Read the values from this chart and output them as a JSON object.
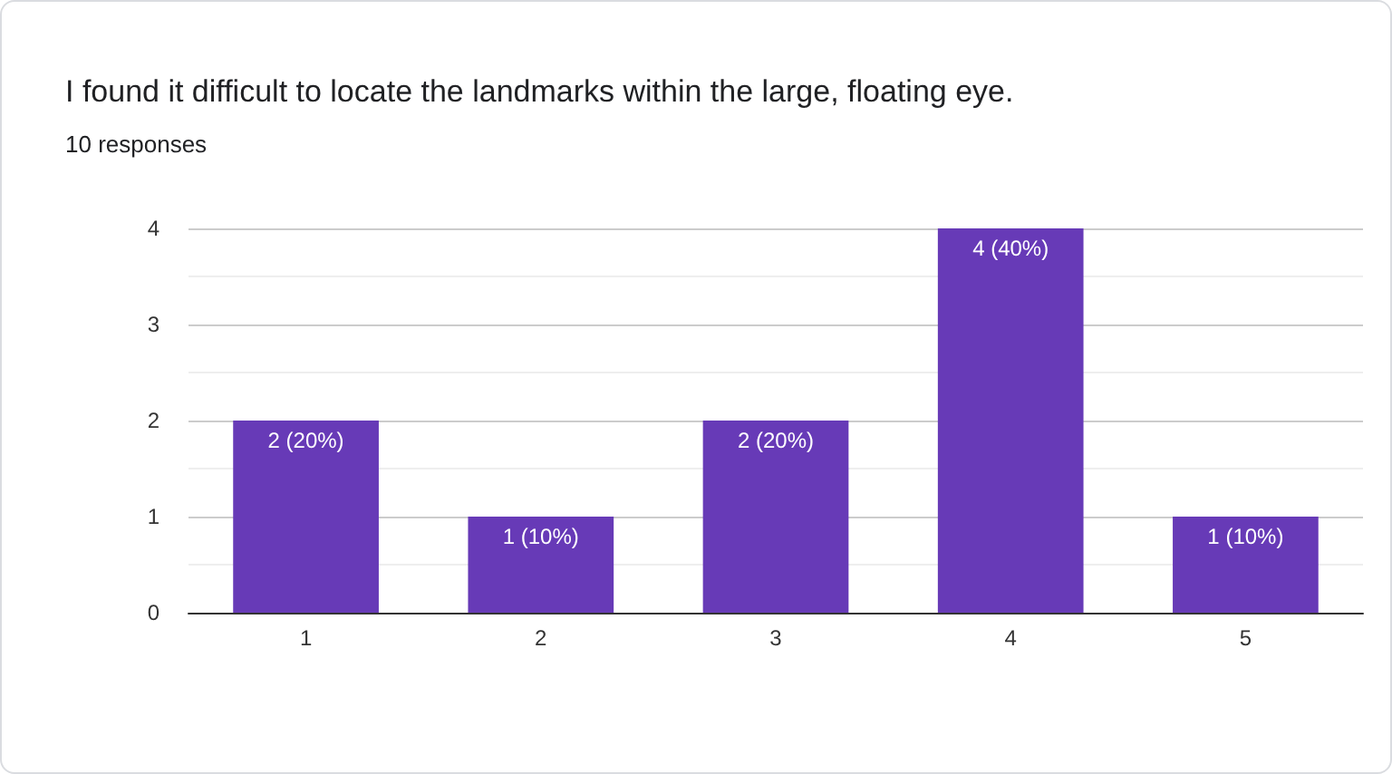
{
  "chart_data": {
    "type": "bar",
    "title": "I found it difficult to locate the landmarks within the large, floating eye.",
    "subtitle": "10 responses",
    "categories": [
      "1",
      "2",
      "3",
      "4",
      "5"
    ],
    "values": [
      2,
      1,
      2,
      4,
      1
    ],
    "value_labels": [
      "2 (20%)",
      "1 (10%)",
      "2 (20%)",
      "4 (40%)",
      "1 (10%)"
    ],
    "color": "#673ab7",
    "ylim": [
      0,
      4
    ],
    "yticks": [
      0,
      1,
      2,
      3,
      4
    ],
    "grid": "y"
  }
}
